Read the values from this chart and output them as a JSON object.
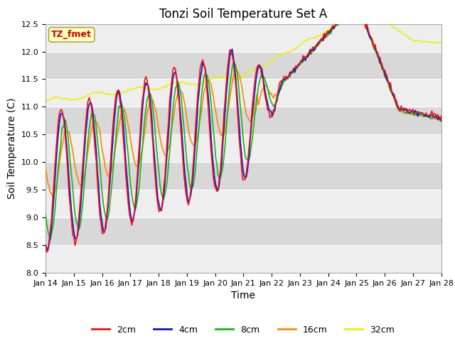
{
  "title": "Tonzi Soil Temperature Set A",
  "xlabel": "Time",
  "ylabel": "Soil Temperature (C)",
  "ylim": [
    8.0,
    12.5
  ],
  "x_tick_labels": [
    "Jan 14",
    "Jan 15",
    "Jan 16",
    "Jan 17",
    "Jan 18",
    "Jan 19",
    "Jan 20",
    "Jan 21",
    "Jan 22",
    "Jan 23",
    "Jan 24",
    "Jan 25",
    "Jan 26",
    "Jan 27",
    "Jan 28"
  ],
  "annotation_text": "TZ_fmet",
  "annotation_color": "#cc0000",
  "annotation_bg": "#ffffbb",
  "annotation_edge": "#999944",
  "line_colors": {
    "2cm": "#ee1111",
    "4cm": "#1111cc",
    "8cm": "#11bb11",
    "16cm": "#ff8800",
    "32cm": "#eeee00"
  },
  "fig_bg": "#ffffff",
  "plot_bg": "#d8d8d8",
  "band_color": "#eeeeee",
  "title_fontsize": 12,
  "tick_fontsize": 8,
  "label_fontsize": 10,
  "legend_fontsize": 9,
  "linewidth": 1.2
}
